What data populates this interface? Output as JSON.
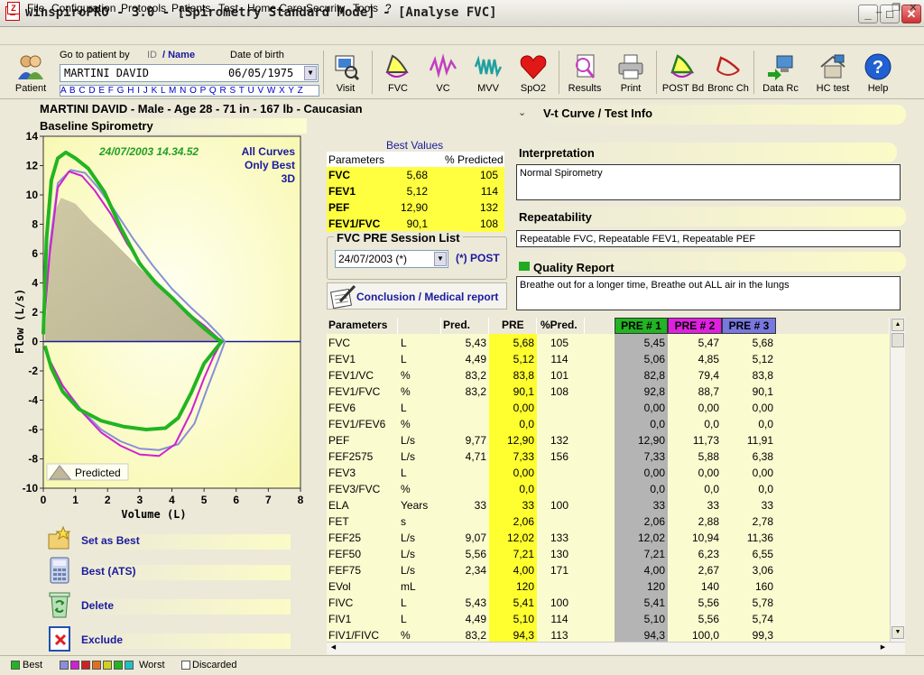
{
  "window": {
    "title": "winspiroPRO  -  3.0 - [Spirometry Standard Mode] - [Analyse FVC]"
  },
  "menu": [
    "File",
    "Configuration",
    "Protocols",
    "Patients",
    "Test",
    "Home Care",
    "Security",
    "Tools",
    "?"
  ],
  "toolbar": {
    "patient_label": "Patient",
    "goto_label": "Go to patient by",
    "id_label": "ID",
    "name_label": "/ Name",
    "dob_label": "Date of birth",
    "patient_value": "MARTINI DAVID",
    "dob_value": "06/05/1975",
    "alphabet": "A B C D E F G H I J K L M N O P Q R S T U V W X Y Z",
    "buttons": [
      "Visit",
      "FVC",
      "VC",
      "MVV",
      "SpO2",
      "Results",
      "Print",
      "POST Bd",
      "Bronc Ch",
      "Data Rc",
      "HC test",
      "Help"
    ]
  },
  "patient": {
    "header": "MARTINI DAVID - Male - Age 28 - 71 in - 167 lb - Caucasian",
    "baseline": "Baseline Spirometry"
  },
  "chart_data": {
    "type": "line",
    "timestamp": "24/07/2003 14.34.52",
    "options": [
      "All Curves",
      "Only Best",
      "3D"
    ],
    "xlabel": "Volume (L)",
    "ylabel": "Flow (L/s)",
    "xlim": [
      0,
      8
    ],
    "ylim": [
      -10,
      14
    ],
    "x_ticks": [
      0,
      1,
      2,
      3,
      4,
      5,
      6,
      7,
      8
    ],
    "y_ticks": [
      14,
      12,
      10,
      8,
      6,
      4,
      2,
      0,
      -2,
      -4,
      -6,
      -8,
      -10
    ],
    "legend_predicted": "Predicted",
    "predicted_area": [
      [
        0.05,
        0.5
      ],
      [
        0.3,
        8.6
      ],
      [
        0.55,
        9.8
      ],
      [
        1.0,
        9.4
      ],
      [
        1.5,
        8.2
      ],
      [
        2.0,
        7.2
      ],
      [
        2.5,
        6.1
      ],
      [
        3.0,
        5.0
      ],
      [
        3.5,
        4.0
      ],
      [
        4.0,
        3.0
      ],
      [
        4.5,
        2.1
      ],
      [
        5.0,
        1.0
      ],
      [
        5.43,
        0.0
      ]
    ],
    "series": [
      {
        "color": "#22b422",
        "points": [
          [
            0.0,
            0.5
          ],
          [
            0.1,
            7.0
          ],
          [
            0.25,
            11.0
          ],
          [
            0.45,
            12.5
          ],
          [
            0.7,
            12.9
          ],
          [
            1.0,
            12.5
          ],
          [
            1.4,
            11.8
          ],
          [
            1.9,
            10.2
          ],
          [
            2.4,
            7.8
          ],
          [
            3.0,
            5.3
          ],
          [
            3.5,
            4.0
          ],
          [
            4.0,
            3.0
          ],
          [
            4.5,
            1.9
          ],
          [
            5.0,
            0.9
          ],
          [
            5.4,
            0.2
          ],
          [
            5.55,
            0.0
          ],
          [
            5.4,
            -0.4
          ],
          [
            5.0,
            -1.5
          ],
          [
            4.6,
            -3.5
          ],
          [
            4.2,
            -5.2
          ],
          [
            3.8,
            -5.9
          ],
          [
            3.2,
            -6.0
          ],
          [
            2.5,
            -5.8
          ],
          [
            1.8,
            -5.4
          ],
          [
            1.1,
            -4.6
          ],
          [
            0.6,
            -3.4
          ],
          [
            0.25,
            -1.8
          ],
          [
            0.05,
            -0.3
          ]
        ]
      },
      {
        "color": "#d020d0",
        "points": [
          [
            0.0,
            0.5
          ],
          [
            0.2,
            6.0
          ],
          [
            0.45,
            10.5
          ],
          [
            0.8,
            11.6
          ],
          [
            1.2,
            11.3
          ],
          [
            1.6,
            10.3
          ],
          [
            2.1,
            8.7
          ],
          [
            2.6,
            6.7
          ],
          [
            3.2,
            4.8
          ],
          [
            3.8,
            3.4
          ],
          [
            4.4,
            2.1
          ],
          [
            5.0,
            1.1
          ],
          [
            5.4,
            0.3
          ],
          [
            5.55,
            0.0
          ],
          [
            5.3,
            -1.0
          ],
          [
            5.0,
            -2.5
          ],
          [
            4.6,
            -4.8
          ],
          [
            4.1,
            -7.0
          ],
          [
            3.6,
            -7.8
          ],
          [
            3.0,
            -7.7
          ],
          [
            2.4,
            -7.1
          ],
          [
            1.8,
            -6.2
          ],
          [
            1.2,
            -4.8
          ],
          [
            0.6,
            -3.0
          ],
          [
            0.2,
            -1.3
          ],
          [
            0.03,
            -0.3
          ]
        ]
      },
      {
        "color": "#8890d8",
        "points": [
          [
            0.0,
            0.5
          ],
          [
            0.2,
            6.5
          ],
          [
            0.45,
            10.8
          ],
          [
            0.85,
            11.7
          ],
          [
            1.3,
            11.5
          ],
          [
            1.7,
            10.5
          ],
          [
            2.2,
            9.0
          ],
          [
            2.8,
            7.0
          ],
          [
            3.4,
            5.2
          ],
          [
            4.0,
            3.6
          ],
          [
            4.6,
            2.3
          ],
          [
            5.1,
            1.3
          ],
          [
            5.5,
            0.4
          ],
          [
            5.65,
            0.0
          ],
          [
            5.45,
            -1.2
          ],
          [
            5.1,
            -3.2
          ],
          [
            4.7,
            -5.6
          ],
          [
            4.2,
            -7.0
          ],
          [
            3.6,
            -7.4
          ],
          [
            3.0,
            -7.3
          ],
          [
            2.4,
            -6.8
          ],
          [
            1.8,
            -6.0
          ],
          [
            1.2,
            -4.7
          ],
          [
            0.6,
            -3.0
          ],
          [
            0.2,
            -1.3
          ],
          [
            0.03,
            -0.3
          ]
        ]
      }
    ]
  },
  "actions": [
    "Set as Best",
    "Best (ATS)",
    "Delete",
    "Exclude"
  ],
  "best_values": {
    "title": "Best Values",
    "head_param": "Parameters",
    "head_pct": "% Predicted",
    "rows": [
      {
        "name": "FVC",
        "value": "5,68",
        "pct": "105"
      },
      {
        "name": "FEV1",
        "value": "5,12",
        "pct": "114"
      },
      {
        "name": "PEF",
        "value": "12,90",
        "pct": "132"
      },
      {
        "name": "FEV1/FVC",
        "value": "90,1",
        "pct": "108"
      }
    ]
  },
  "session": {
    "title": "FVC PRE Session List",
    "selected": "24/07/2003 (*)",
    "post": "(*) POST",
    "conclusion": "Conclusion / Medical report"
  },
  "info": {
    "vt_title": "V-t Curve / Test Info",
    "interp_title": "Interpretation",
    "interp_text": "Normal Spirometry",
    "repeat_title": "Repeatability",
    "repeat_text": "Repeatable FVC, Repeatable FEV1, Repeatable PEF",
    "quality_title": "Quality Report",
    "quality_text": "Breathe out for a longer time, Breathe out ALL air in the lungs",
    "quality_color": "#22aa22"
  },
  "table": {
    "headers": [
      "Parameters",
      "Pred.",
      "PRE",
      "%Pred.",
      "PRE # 1",
      "PRE # 2",
      "PRE # 3"
    ],
    "header_colors": {
      "pre1": "#22b422",
      "pre2": "#e020e0",
      "pre3": "#7878e0"
    },
    "rows": [
      [
        "FVC",
        "L",
        "5,43",
        "5,68",
        "105",
        "5,45",
        "5,47",
        "5,68"
      ],
      [
        "FEV1",
        "L",
        "4,49",
        "5,12",
        "114",
        "5,06",
        "4,85",
        "5,12"
      ],
      [
        "FEV1/VC",
        "%",
        "83,2",
        "83,8",
        "101",
        "82,8",
        "79,4",
        "83,8"
      ],
      [
        "FEV1/FVC",
        "%",
        "83,2",
        "90,1",
        "108",
        "92,8",
        "88,7",
        "90,1"
      ],
      [
        "FEV6",
        "L",
        "",
        "0,00",
        "",
        "0,00",
        "0,00",
        "0,00"
      ],
      [
        "FEV1/FEV6",
        "%",
        "",
        "0,0",
        "",
        "0,0",
        "0,0",
        "0,0"
      ],
      [
        "PEF",
        "L/s",
        "9,77",
        "12,90",
        "132",
        "12,90",
        "11,73",
        "11,91"
      ],
      [
        "FEF2575",
        "L/s",
        "4,71",
        "7,33",
        "156",
        "7,33",
        "5,88",
        "6,38"
      ],
      [
        "FEV3",
        "L",
        "",
        "0,00",
        "",
        "0,00",
        "0,00",
        "0,00"
      ],
      [
        "FEV3/FVC",
        "%",
        "",
        "0,0",
        "",
        "0,0",
        "0,0",
        "0,0"
      ],
      [
        "ELA",
        "Years",
        "33",
        "33",
        "100",
        "33",
        "33",
        "33"
      ],
      [
        "FET",
        "s",
        "",
        "2,06",
        "",
        "2,06",
        "2,88",
        "2,78"
      ],
      [
        "FEF25",
        "L/s",
        "9,07",
        "12,02",
        "133",
        "12,02",
        "10,94",
        "11,36"
      ],
      [
        "FEF50",
        "L/s",
        "5,56",
        "7,21",
        "130",
        "7,21",
        "6,23",
        "6,55"
      ],
      [
        "FEF75",
        "L/s",
        "2,34",
        "4,00",
        "171",
        "4,00",
        "2,67",
        "3,06"
      ],
      [
        "EVol",
        "mL",
        "",
        "120",
        "",
        "120",
        "140",
        "160"
      ],
      [
        "FIVC",
        "L",
        "5,43",
        "5,41",
        "100",
        "5,41",
        "5,56",
        "5,78"
      ],
      [
        "FIV1",
        "L",
        "4,49",
        "5,10",
        "114",
        "5,10",
        "5,56",
        "5,74"
      ],
      [
        "FIV1/FIVC",
        "%",
        "83,2",
        "94,3",
        "113",
        "94,3",
        "100,0",
        "99,3"
      ]
    ]
  },
  "status": {
    "best": "Best",
    "worst": "Worst",
    "discarded": "Discarded",
    "best_color": "#22b422",
    "worst_colors": [
      "#8890d8",
      "#d020d0",
      "#d02020",
      "#e07020",
      "#d0d020",
      "#22b422",
      "#20c0c0"
    ]
  }
}
